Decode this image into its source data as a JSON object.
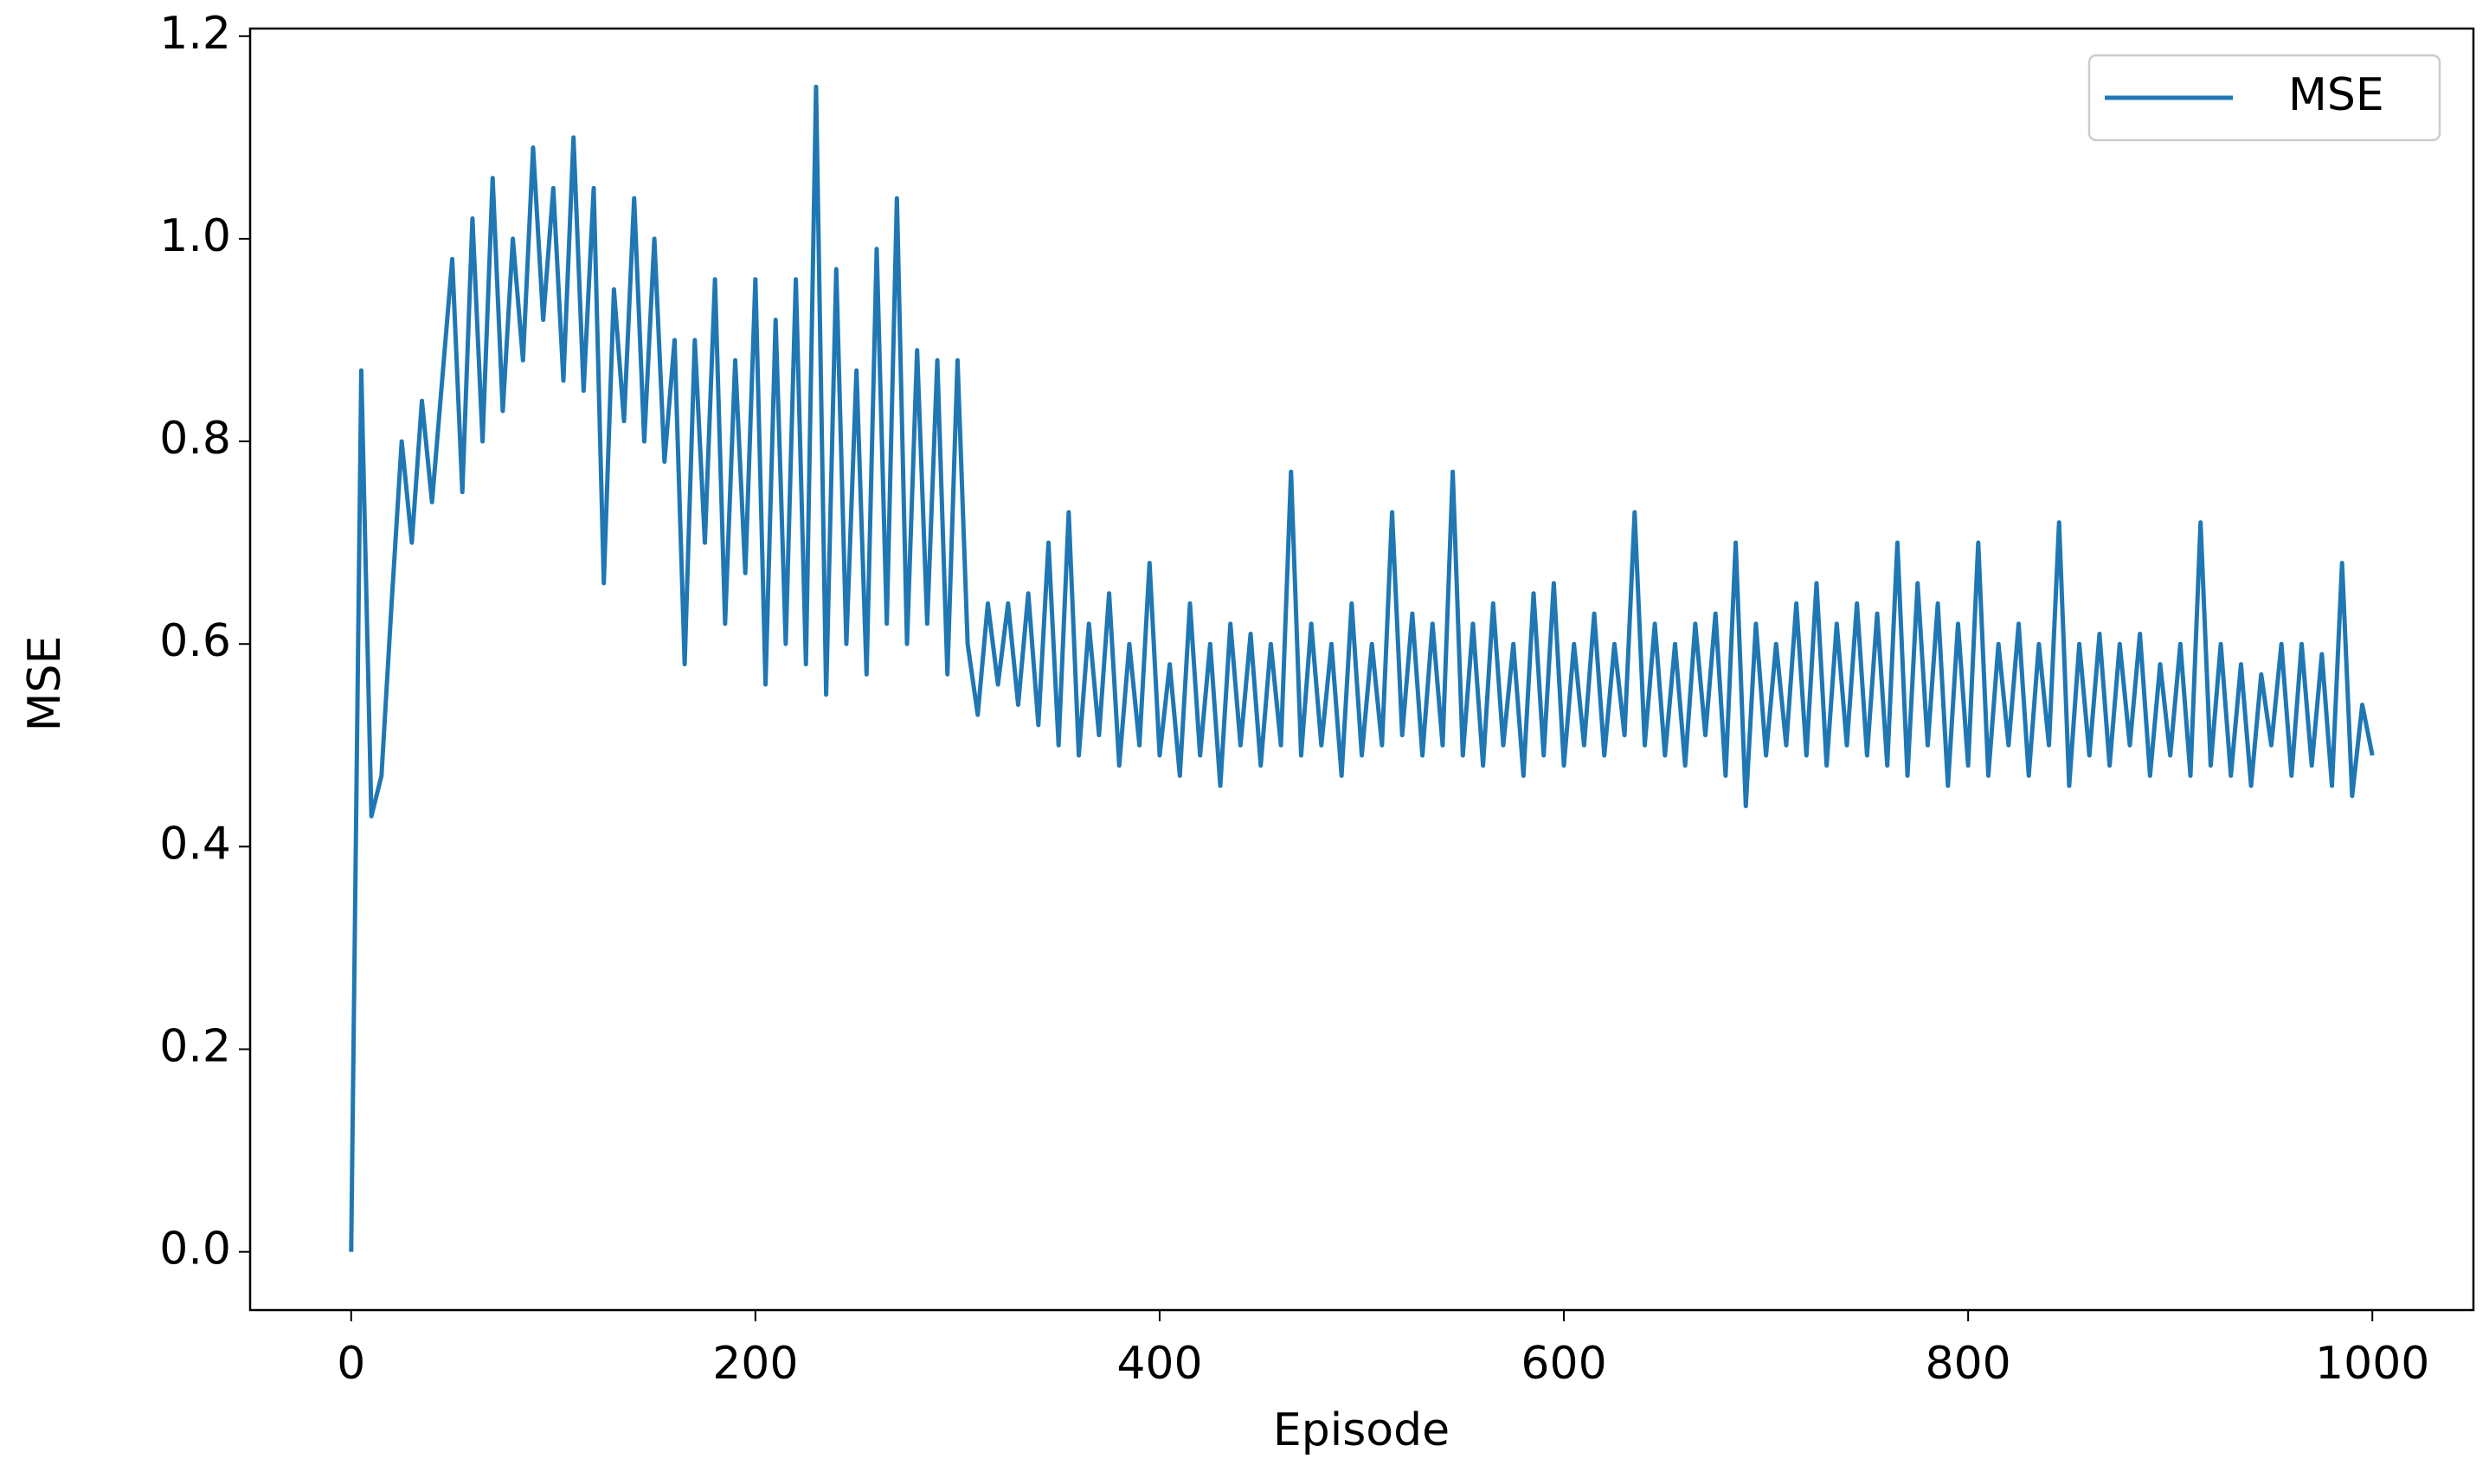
{
  "chart_data": {
    "type": "line",
    "x_label": "Episode",
    "y_label": "MSE",
    "x": [
      0,
      5,
      10,
      15,
      20,
      25,
      30,
      35,
      40,
      45,
      50,
      55,
      60,
      65,
      70,
      75,
      80,
      85,
      90,
      95,
      100,
      105,
      110,
      115,
      120,
      125,
      130,
      135,
      140,
      145,
      150,
      155,
      160,
      165,
      170,
      175,
      180,
      185,
      190,
      195,
      200,
      205,
      210,
      215,
      220,
      225,
      230,
      235,
      240,
      245,
      250,
      255,
      260,
      265,
      270,
      275,
      280,
      285,
      290,
      295,
      300,
      305,
      310,
      315,
      320,
      325,
      330,
      335,
      340,
      345,
      350,
      355,
      360,
      365,
      370,
      375,
      380,
      385,
      390,
      395,
      400,
      405,
      410,
      415,
      420,
      425,
      430,
      435,
      440,
      445,
      450,
      455,
      460,
      465,
      470,
      475,
      480,
      485,
      490,
      495,
      500,
      505,
      510,
      515,
      520,
      525,
      530,
      535,
      540,
      545,
      550,
      555,
      560,
      565,
      570,
      575,
      580,
      585,
      590,
      595,
      600,
      605,
      610,
      615,
      620,
      625,
      630,
      635,
      640,
      645,
      650,
      655,
      660,
      665,
      670,
      675,
      680,
      685,
      690,
      695,
      700,
      705,
      710,
      715,
      720,
      725,
      730,
      735,
      740,
      745,
      750,
      755,
      760,
      765,
      770,
      775,
      780,
      785,
      790,
      795,
      800,
      805,
      810,
      815,
      820,
      825,
      830,
      835,
      840,
      845,
      850,
      855,
      860,
      865,
      870,
      875,
      880,
      885,
      890,
      895,
      900,
      905,
      910,
      915,
      920,
      925,
      930,
      935,
      940,
      945,
      950,
      955,
      960,
      965,
      970,
      975,
      980,
      985,
      990,
      995,
      1000
    ],
    "series": [
      {
        "name": "MSE",
        "color": "#1f77b4",
        "values": [
          0,
          0.87,
          0.43,
          0.47,
          0.64,
          0.8,
          0.7,
          0.84,
          0.74,
          0.86,
          0.98,
          0.75,
          1.02,
          0.8,
          1.06,
          0.83,
          1.0,
          0.88,
          1.09,
          0.92,
          1.05,
          0.86,
          1.1,
          0.85,
          1.05,
          0.66,
          0.95,
          0.82,
          1.04,
          0.8,
          1.0,
          0.78,
          0.9,
          0.58,
          0.9,
          0.7,
          0.96,
          0.62,
          0.88,
          0.67,
          0.96,
          0.56,
          0.92,
          0.6,
          0.96,
          0.58,
          1.15,
          0.55,
          0.97,
          0.6,
          0.87,
          0.57,
          0.99,
          0.62,
          1.04,
          0.6,
          0.89,
          0.62,
          0.88,
          0.57,
          0.88,
          0.6,
          0.53,
          0.64,
          0.56,
          0.64,
          0.54,
          0.65,
          0.52,
          0.7,
          0.5,
          0.73,
          0.49,
          0.62,
          0.51,
          0.65,
          0.48,
          0.6,
          0.5,
          0.68,
          0.49,
          0.58,
          0.47,
          0.64,
          0.49,
          0.6,
          0.46,
          0.62,
          0.5,
          0.61,
          0.48,
          0.6,
          0.5,
          0.77,
          0.49,
          0.62,
          0.5,
          0.6,
          0.47,
          0.64,
          0.49,
          0.6,
          0.5,
          0.73,
          0.51,
          0.63,
          0.49,
          0.62,
          0.5,
          0.77,
          0.49,
          0.62,
          0.48,
          0.64,
          0.5,
          0.6,
          0.47,
          0.65,
          0.49,
          0.66,
          0.48,
          0.6,
          0.5,
          0.63,
          0.49,
          0.6,
          0.51,
          0.73,
          0.5,
          0.62,
          0.49,
          0.6,
          0.48,
          0.62,
          0.51,
          0.63,
          0.47,
          0.7,
          0.44,
          0.62,
          0.49,
          0.6,
          0.5,
          0.64,
          0.49,
          0.66,
          0.48,
          0.62,
          0.5,
          0.64,
          0.49,
          0.63,
          0.48,
          0.7,
          0.47,
          0.66,
          0.5,
          0.64,
          0.46,
          0.62,
          0.48,
          0.7,
          0.47,
          0.6,
          0.5,
          0.62,
          0.47,
          0.6,
          0.5,
          0.72,
          0.46,
          0.6,
          0.49,
          0.61,
          0.48,
          0.6,
          0.5,
          0.61,
          0.47,
          0.58,
          0.49,
          0.6,
          0.47,
          0.72,
          0.48,
          0.6,
          0.47,
          0.58,
          0.46,
          0.57,
          0.5,
          0.6,
          0.47,
          0.6,
          0.48,
          0.59,
          0.46,
          0.68,
          0.45,
          0.54,
          0.49
        ]
      }
    ],
    "xlim": [
      -50,
      1050
    ],
    "xticks": [
      0,
      200,
      400,
      600,
      800,
      1000
    ],
    "ylim": [
      -0.0575,
      1.2075
    ],
    "yticks": [
      {
        "value": 0,
        "label": "0.0"
      },
      0.2,
      0.4,
      0.6,
      0.8,
      {
        "value": 1,
        "label": "1.0"
      },
      1.2
    ],
    "legend": "upper right",
    "grid": false
  }
}
